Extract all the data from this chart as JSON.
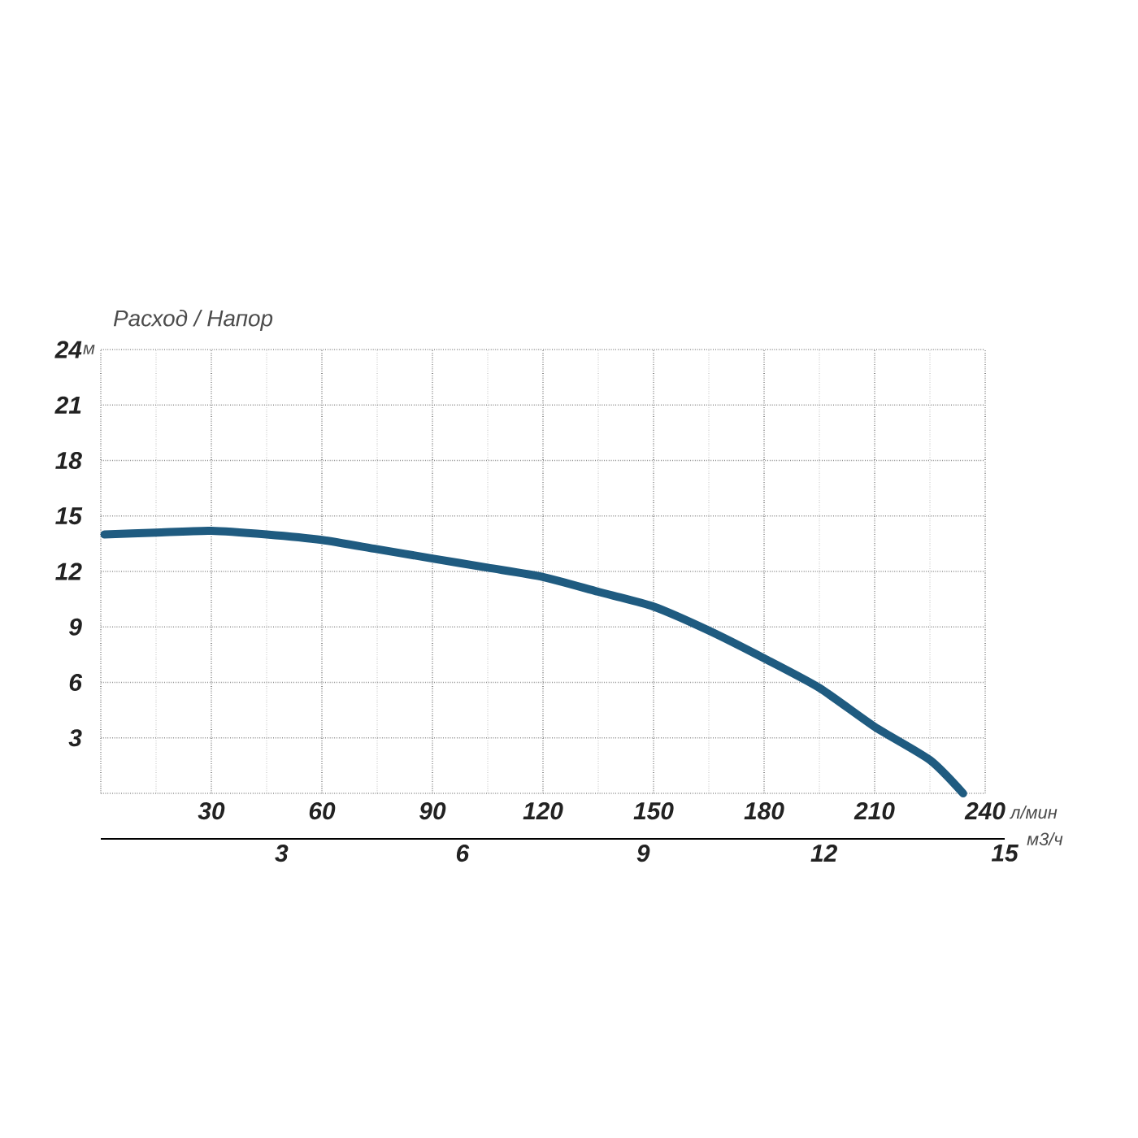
{
  "chart_data": {
    "type": "line",
    "title": "Расход / Напор",
    "xlabel": "л/мин",
    "ylabel": "м",
    "x2label": "м3/ч",
    "xlim": [
      0,
      240
    ],
    "xticks": [
      {
        "value": 0,
        "label": null
      },
      30,
      60,
      90,
      120,
      150,
      180,
      210,
      240
    ],
    "ylim": [
      0,
      24
    ],
    "yticks": [
      {
        "value": 0,
        "label": null
      },
      3,
      6,
      9,
      12,
      15,
      18,
      21,
      24
    ],
    "x2lim": [
      0,
      15
    ],
    "x2ticks": [
      3,
      6,
      9,
      12,
      15
    ],
    "grid": true,
    "marker": "none",
    "line_style": "solid",
    "series": [
      {
        "color": "#1f5b80",
        "x": [
          1,
          15,
          30,
          45,
          60,
          75,
          90,
          105,
          120,
          135,
          150,
          165,
          180,
          195,
          210,
          225,
          234
        ],
        "values": [
          14.0,
          14.1,
          14.2,
          14.0,
          13.7,
          13.2,
          12.7,
          12.2,
          11.7,
          10.9,
          10.1,
          8.8,
          7.3,
          5.7,
          3.6,
          1.8,
          0
        ]
      }
    ]
  }
}
